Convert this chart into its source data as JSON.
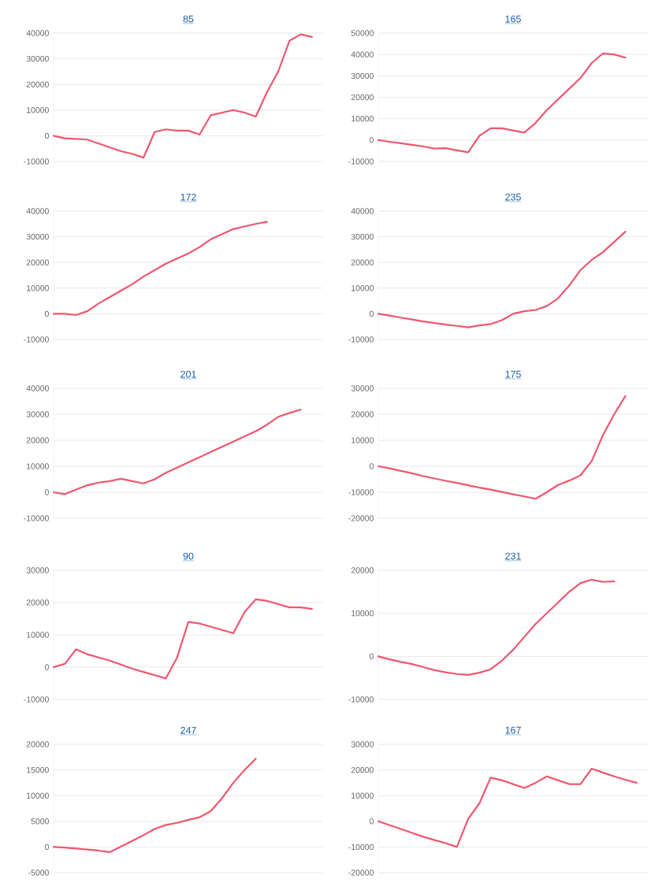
{
  "chart_data": [
    {
      "type": "line",
      "title": "85",
      "color": "#f0566f",
      "grid": "y",
      "tick_labels": "y",
      "ylim": [
        -10000,
        40000
      ],
      "yticks": [
        -10000,
        0,
        10000,
        20000,
        30000,
        40000
      ],
      "categories": [
        null,
        null,
        null,
        null,
        null,
        null,
        null,
        null,
        null,
        null,
        null,
        null,
        null,
        null,
        null,
        null,
        null,
        null,
        null,
        null,
        null,
        null,
        null,
        null,
        null
      ],
      "values": [
        0,
        -1000,
        -1200,
        -1500,
        -3000,
        -4500,
        -6000,
        -7000,
        -8500,
        1500,
        2500,
        2000,
        2000,
        500,
        8000,
        9000,
        10000,
        9000,
        7500,
        17000,
        25000,
        37000,
        39500,
        38500,
        null
      ]
    },
    {
      "type": "line",
      "title": "165",
      "color": "#f0566f",
      "grid": "y",
      "tick_labels": "y",
      "ylim": [
        -10000,
        50000
      ],
      "yticks": [
        -10000,
        0,
        10000,
        20000,
        30000,
        40000,
        50000
      ],
      "categories": [
        null,
        null,
        null,
        null,
        null,
        null,
        null,
        null,
        null,
        null,
        null,
        null,
        null,
        null,
        null,
        null,
        null,
        null,
        null,
        null,
        null,
        null,
        null,
        null,
        null
      ],
      "values": [
        0,
        -800,
        -1500,
        -2200,
        -3000,
        -4000,
        -3800,
        -4800,
        -5700,
        2000,
        5500,
        5500,
        4500,
        3500,
        8000,
        14000,
        19000,
        24000,
        29000,
        36000,
        40500,
        40000,
        38500,
        null,
        null
      ]
    },
    {
      "type": "line",
      "title": "172",
      "color": "#f0566f",
      "grid": "y",
      "tick_labels": "y",
      "ylim": [
        -10000,
        40000
      ],
      "yticks": [
        -10000,
        0,
        10000,
        20000,
        30000,
        40000
      ],
      "categories": [
        null,
        null,
        null,
        null,
        null,
        null,
        null,
        null,
        null,
        null,
        null,
        null,
        null,
        null,
        null,
        null,
        null,
        null,
        null,
        null,
        null,
        null,
        null,
        null,
        null
      ],
      "values": [
        0,
        0,
        -500,
        1000,
        4000,
        6500,
        9000,
        11500,
        14500,
        17000,
        19500,
        21500,
        23500,
        26000,
        29000,
        31000,
        33000,
        34000,
        35000,
        35800,
        null,
        null,
        null,
        null,
        null
      ]
    },
    {
      "type": "line",
      "title": "235",
      "color": "#f0566f",
      "grid": "y",
      "tick_labels": "y",
      "ylim": [
        -10000,
        40000
      ],
      "yticks": [
        -10000,
        0,
        10000,
        20000,
        30000,
        40000
      ],
      "categories": [
        null,
        null,
        null,
        null,
        null,
        null,
        null,
        null,
        null,
        null,
        null,
        null,
        null,
        null,
        null,
        null,
        null,
        null,
        null,
        null,
        null,
        null,
        null,
        null,
        null
      ],
      "values": [
        0,
        -700,
        -1500,
        -2200,
        -3000,
        -3600,
        -4200,
        -4700,
        -5300,
        -4500,
        -4000,
        -2500,
        0,
        1000,
        1500,
        3000,
        6000,
        11000,
        17000,
        21000,
        24000,
        28000,
        32000,
        null,
        null
      ]
    },
    {
      "type": "line",
      "title": "201",
      "color": "#f0566f",
      "grid": "y",
      "tick_labels": "y",
      "ylim": [
        -10000,
        40000
      ],
      "yticks": [
        -10000,
        0,
        10000,
        20000,
        30000,
        40000
      ],
      "categories": [
        null,
        null,
        null,
        null,
        null,
        null,
        null,
        null,
        null,
        null,
        null,
        null,
        null,
        null,
        null,
        null,
        null,
        null,
        null,
        null,
        null,
        null,
        null,
        null,
        null
      ],
      "values": [
        0,
        -700,
        1000,
        2700,
        3700,
        4300,
        5200,
        4300,
        3400,
        5000,
        7500,
        9500,
        11500,
        13500,
        15500,
        17500,
        19500,
        21500,
        23500,
        26000,
        29000,
        30500,
        31800,
        null,
        null
      ]
    },
    {
      "type": "line",
      "title": "175",
      "color": "#f0566f",
      "grid": "y",
      "tick_labels": "y",
      "ylim": [
        -20000,
        30000
      ],
      "yticks": [
        -20000,
        -10000,
        0,
        10000,
        20000,
        30000
      ],
      "categories": [
        null,
        null,
        null,
        null,
        null,
        null,
        null,
        null,
        null,
        null,
        null,
        null,
        null,
        null,
        null,
        null,
        null,
        null,
        null,
        null,
        null,
        null,
        null,
        null,
        null
      ],
      "values": [
        0,
        -800,
        -1800,
        -2700,
        -3800,
        -4700,
        -5600,
        -6400,
        -7300,
        -8200,
        -9000,
        -9900,
        -10800,
        -11600,
        -12500,
        -10000,
        -7200,
        -5500,
        -3500,
        2000,
        12000,
        20000,
        27000,
        null,
        null
      ]
    },
    {
      "type": "line",
      "title": "90",
      "color": "#f0566f",
      "grid": "y",
      "tick_labels": "y",
      "ylim": [
        -10000,
        30000
      ],
      "yticks": [
        -10000,
        0,
        10000,
        20000,
        30000
      ],
      "categories": [
        null,
        null,
        null,
        null,
        null,
        null,
        null,
        null,
        null,
        null,
        null,
        null,
        null,
        null,
        null,
        null,
        null,
        null,
        null,
        null,
        null,
        null,
        null,
        null,
        null
      ],
      "values": [
        0,
        1000,
        5500,
        4000,
        3000,
        2000,
        800,
        -500,
        -1500,
        -2500,
        -3500,
        3000,
        14000,
        13500,
        12500,
        11500,
        10500,
        17000,
        21000,
        20500,
        19500,
        18500,
        18500,
        18000,
        null
      ]
    },
    {
      "type": "line",
      "title": "231",
      "color": "#f0566f",
      "grid": "y",
      "tick_labels": "y",
      "ylim": [
        -10000,
        20000
      ],
      "yticks": [
        -10000,
        0,
        10000,
        20000
      ],
      "categories": [
        null,
        null,
        null,
        null,
        null,
        null,
        null,
        null,
        null,
        null,
        null,
        null,
        null,
        null,
        null,
        null,
        null,
        null,
        null,
        null,
        null,
        null,
        null,
        null,
        null
      ],
      "values": [
        0,
        -700,
        -1300,
        -1800,
        -2500,
        -3200,
        -3700,
        -4100,
        -4300,
        -3800,
        -3000,
        -1000,
        1500,
        4500,
        7500,
        10000,
        12500,
        15000,
        17000,
        17800,
        17300,
        17400,
        null,
        null,
        null
      ]
    },
    {
      "type": "line",
      "title": "247",
      "color": "#f0566f",
      "grid": "y",
      "tick_labels": "y",
      "ylim": [
        -5000,
        20000
      ],
      "yticks": [
        -5000,
        0,
        5000,
        10000,
        15000,
        20000
      ],
      "categories": [
        null,
        null,
        null,
        null,
        null,
        null,
        null,
        null,
        null,
        null,
        null,
        null,
        null,
        null,
        null,
        null,
        null,
        null,
        null,
        null,
        null,
        null,
        null,
        null,
        null
      ],
      "values": [
        0,
        -100,
        -300,
        -500,
        -700,
        -1000,
        100,
        1200,
        2300,
        3500,
        4300,
        4700,
        5300,
        5800,
        7000,
        9500,
        12500,
        15000,
        17200,
        null,
        null,
        null,
        null,
        null,
        null
      ]
    },
    {
      "type": "line",
      "title": "167",
      "color": "#f0566f",
      "grid": "y",
      "tick_labels": "y",
      "ylim": [
        -20000,
        30000
      ],
      "yticks": [
        -20000,
        -10000,
        0,
        10000,
        20000,
        30000
      ],
      "categories": [
        null,
        null,
        null,
        null,
        null,
        null,
        null,
        null,
        null,
        null,
        null,
        null,
        null,
        null,
        null,
        null,
        null,
        null,
        null,
        null,
        null,
        null,
        null,
        null,
        null
      ],
      "values": [
        0,
        -1500,
        -3000,
        -4500,
        -6000,
        -7300,
        -8500,
        -10000,
        1000,
        7000,
        17000,
        16000,
        14500,
        13000,
        15000,
        17500,
        16000,
        14500,
        14500,
        20500,
        19000,
        17500,
        16200,
        15000,
        null
      ]
    }
  ]
}
